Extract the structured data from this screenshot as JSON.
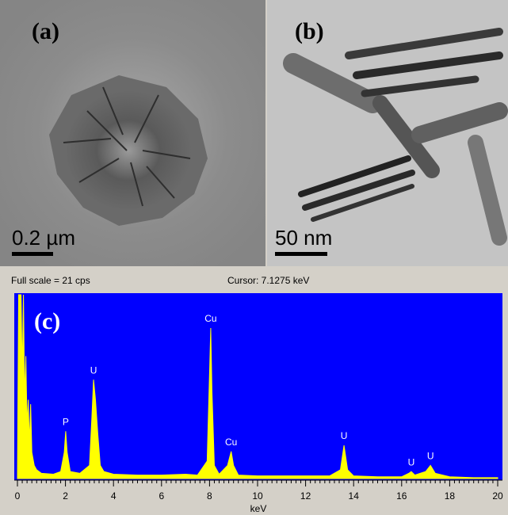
{
  "images": [
    {
      "label": "(a)",
      "scale_bar": "0.2 µm"
    },
    {
      "label": "(b)",
      "scale_bar": "50 nm"
    }
  ],
  "chart_data": {
    "type": "area",
    "label": "(c)",
    "header_left": "Full scale = 21  cps",
    "header_right": "Cursor:  7.1275 keV",
    "xlabel": "keV",
    "xlim": [
      0,
      20
    ],
    "xticks": [
      0,
      2,
      4,
      6,
      8,
      10,
      12,
      14,
      16,
      18,
      20
    ],
    "ylim": [
      0,
      21
    ],
    "color": "#ffff00",
    "background": "#0000ff",
    "x": [
      0,
      0.05,
      0.15,
      0.2,
      0.25,
      0.3,
      0.35,
      0.4,
      0.45,
      0.5,
      0.55,
      0.6,
      0.7,
      0.8,
      1.0,
      1.5,
      1.8,
      1.95,
      2.01,
      2.07,
      2.2,
      2.6,
      3.0,
      3.1,
      3.17,
      3.25,
      3.35,
      3.45,
      3.6,
      4.0,
      5,
      6,
      7,
      7.5,
      7.9,
      8.0,
      8.05,
      8.1,
      8.2,
      8.4,
      8.75,
      8.9,
      9.0,
      9.2,
      10,
      11,
      12,
      13,
      13.45,
      13.6,
      13.75,
      14,
      15,
      16,
      16.3,
      16.4,
      16.55,
      17.0,
      17.2,
      17.4,
      18,
      19,
      20
    ],
    "values": [
      0,
      21,
      21,
      12,
      21,
      9,
      14,
      6,
      9,
      4,
      8.5,
      3,
      1.5,
      1,
      0.6,
      0.5,
      0.8,
      3,
      5.4,
      3,
      0.8,
      0.6,
      1.5,
      7,
      11.3,
      9,
      5,
      1.5,
      0.8,
      0.5,
      0.4,
      0.4,
      0.5,
      0.4,
      2,
      12,
      17.2,
      10,
      1.5,
      0.5,
      1.5,
      3.1,
      1.5,
      0.4,
      0.3,
      0.3,
      0.3,
      0.3,
      1,
      3.8,
      1,
      0.3,
      0.2,
      0.2,
      0.6,
      0.8,
      0.4,
      0.8,
      1.5,
      0.6,
      0.2,
      0.1,
      0.1
    ],
    "annotations": [
      {
        "text": "P",
        "x": 2.01
      },
      {
        "text": "U",
        "x": 3.17
      },
      {
        "text": "Cu",
        "x": 8.05
      },
      {
        "text": "Cu",
        "x": 8.9
      },
      {
        "text": "U",
        "x": 13.6
      },
      {
        "text": "U",
        "x": 16.4
      },
      {
        "text": "U",
        "x": 17.2
      }
    ]
  }
}
